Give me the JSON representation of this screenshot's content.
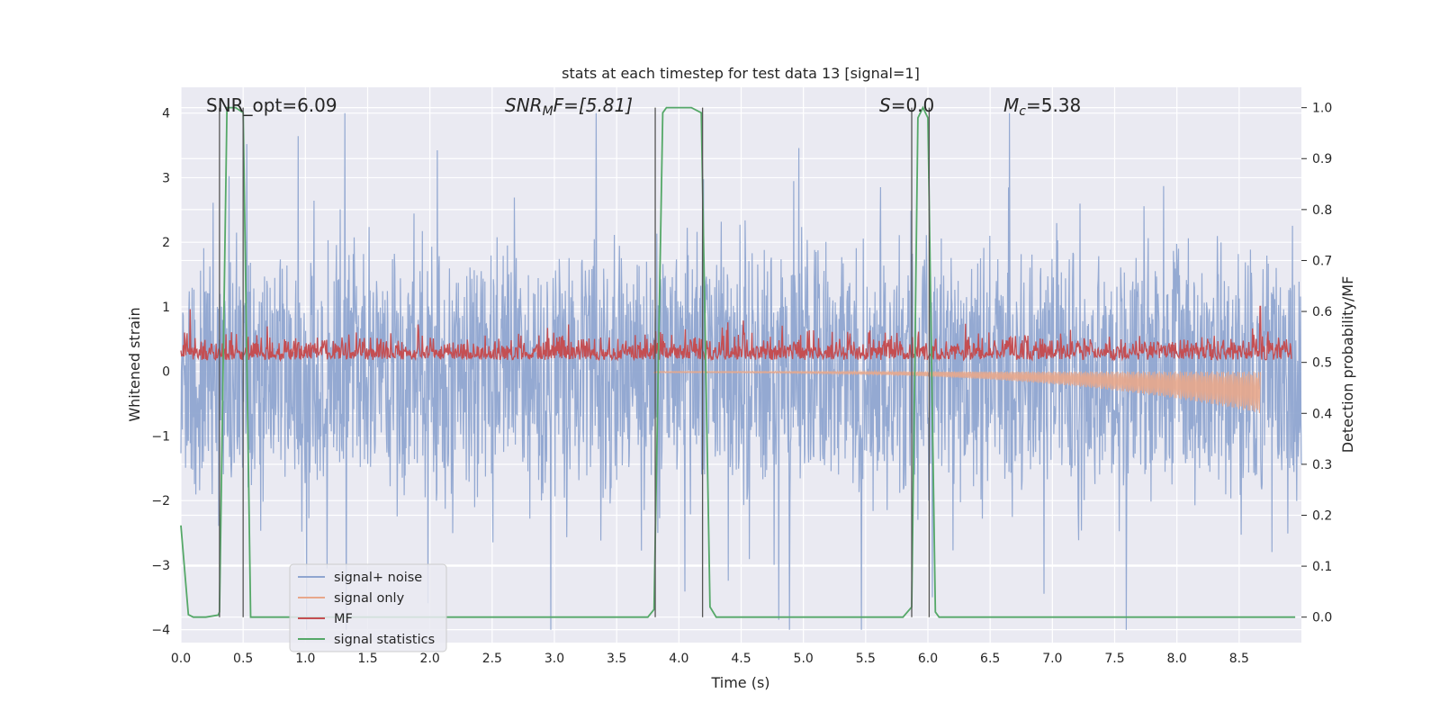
{
  "chart_data": {
    "type": "line",
    "title": "stats at each timestep for test data 13 [signal=1]",
    "xlabel": "Time (s)",
    "ylabel": "Whitened strain",
    "ylabel_right": "Detection probability/MF",
    "xlim": [
      0,
      9
    ],
    "ylim": [
      -4.2,
      4.4
    ],
    "ylim_right": [
      -0.05,
      1.04
    ],
    "x_ticks": [
      0.0,
      0.5,
      1.0,
      1.5,
      2.0,
      2.5,
      3.0,
      3.5,
      4.0,
      4.5,
      5.0,
      5.5,
      6.0,
      6.5,
      7.0,
      7.5,
      8.0,
      8.5
    ],
    "x_tick_labels": [
      "0.0",
      "0.5",
      "1.0",
      "1.5",
      "2.0",
      "2.5",
      "3.0",
      "3.5",
      "4.0",
      "4.5",
      "5.0",
      "5.5",
      "6.0",
      "6.5",
      "7.0",
      "7.5",
      "8.0",
      "8.5"
    ],
    "y_ticks": [
      4,
      3,
      2,
      1,
      0,
      -1,
      -2,
      -3,
      -4
    ],
    "y_tick_labels": [
      "4",
      "3",
      "2",
      "1",
      "0",
      "−1",
      "−2",
      "−3",
      "−4"
    ],
    "y_ticks_right": [
      1.0,
      0.9,
      0.8,
      0.7,
      0.6,
      0.5,
      0.4,
      0.3,
      0.2,
      0.1,
      0.0
    ],
    "y_tick_labels_right": [
      "1.0",
      "0.9",
      "0.8",
      "0.7",
      "0.6",
      "0.5",
      "0.4",
      "0.3",
      "0.2",
      "0.1",
      "0.0"
    ],
    "grid": true,
    "legend_position": "lower-left",
    "annotations": {
      "snr_opt": "SNR_opt=6.09",
      "snr_mf_base": "SNR",
      "snr_mf_sub": "M",
      "snr_mf_rest": "F=[5.81]",
      "s_label": "S",
      "s_rest": "=0.0",
      "mc_base": "M",
      "mc_sub": "c",
      "mc_rest": "=5.38"
    },
    "vlines": [
      0.31,
      0.5,
      3.81,
      4.19,
      5.87,
      6.01
    ],
    "series": [
      {
        "name": "signal+ noise",
        "axis": "left",
        "color": "#8fa5d0",
        "kind": "noise",
        "band": [
          -1.4,
          1.5
        ],
        "max_extent": [
          -4.0,
          4.0
        ]
      },
      {
        "name": "signal only",
        "axis": "left",
        "color": "#e8a78b",
        "kind": "chirp",
        "x_start": 3.8,
        "x_end": 8.67,
        "amplitude_start": 0.02,
        "amplitude_end": 0.65
      },
      {
        "name": "MF",
        "axis": "right",
        "color": "#c44e52",
        "kind": "noise",
        "band": [
          0.505,
          0.535
        ],
        "peak": {
          "x": 8.67,
          "y": 0.61
        }
      },
      {
        "name": "signal statistics",
        "axis": "right",
        "color": "#55a868",
        "x": [
          0.0,
          0.06,
          0.1,
          0.2,
          0.3,
          0.31,
          0.37,
          0.4,
          0.44,
          0.5,
          0.56,
          0.6,
          1.0,
          2.0,
          3.0,
          3.75,
          3.8,
          3.87,
          3.9,
          4.0,
          4.1,
          4.18,
          4.25,
          4.3,
          5.0,
          5.8,
          5.87,
          5.92,
          5.96,
          6.0,
          6.06,
          6.09,
          6.2,
          7.0,
          8.0,
          8.5,
          8.95
        ],
        "y": [
          0.18,
          0.005,
          0.0,
          0.0,
          0.004,
          0.01,
          1.0,
          1.0,
          1.0,
          0.99,
          0.0,
          0.0,
          0.0,
          0.0,
          0.0,
          0.0,
          0.015,
          0.99,
          1.0,
          1.0,
          1.0,
          0.99,
          0.02,
          0.0,
          0.0,
          0.0,
          0.02,
          0.98,
          1.0,
          0.98,
          0.01,
          0.0,
          0.0,
          0.0,
          0.0,
          0.0,
          0.0
        ]
      }
    ]
  }
}
